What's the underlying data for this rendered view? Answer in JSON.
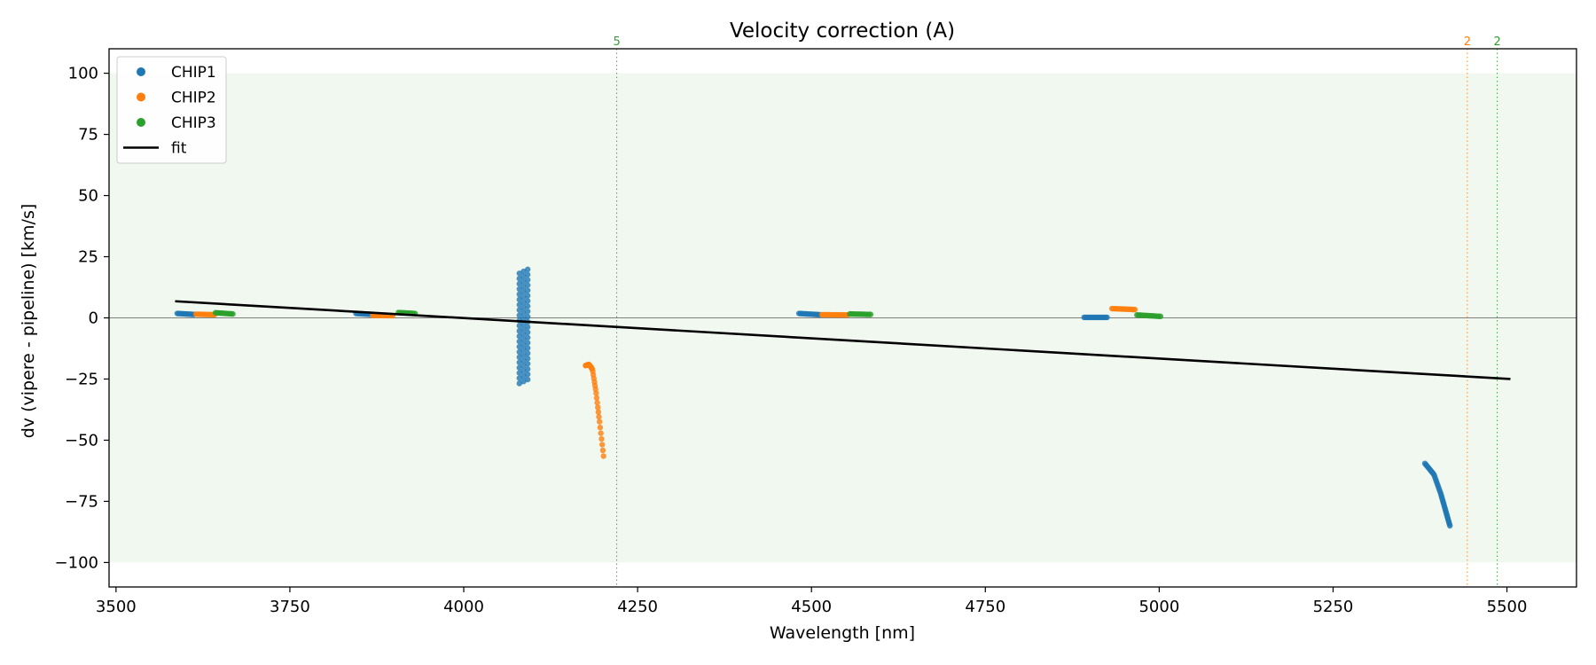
{
  "chart_data": {
    "type": "scatter",
    "title": "Velocity correction (A)",
    "xlabel": "Wavelength [nm]",
    "ylabel": "dv (vipere - pipeline) [km/s]",
    "xlim": [
      3490,
      5600
    ],
    "ylim": [
      -110,
      110
    ],
    "xticks": [
      3500,
      3750,
      4000,
      4250,
      4500,
      4750,
      5000,
      5250,
      5500
    ],
    "yticks": [
      -100,
      -75,
      -50,
      -25,
      0,
      25,
      50,
      75,
      100
    ],
    "xtick_labels": [
      "3500",
      "3750",
      "4000",
      "4250",
      "4500",
      "4750",
      "5000",
      "5250",
      "5500"
    ],
    "ytick_labels": [
      "−100",
      "−75",
      "−50",
      "−25",
      "0",
      "25",
      "50",
      "75",
      "100"
    ],
    "shaded_band": {
      "y0": -100,
      "y1": 100,
      "color": "#2ca02c"
    },
    "zero_line": {
      "y": 0
    },
    "legend": {
      "position": "top-left",
      "entries": [
        {
          "label": "CHIP1",
          "kind": "marker",
          "color": "#1f77b4"
        },
        {
          "label": "CHIP2",
          "kind": "marker",
          "color": "#ff7f0e"
        },
        {
          "label": "CHIP3",
          "kind": "marker",
          "color": "#2ca02c"
        },
        {
          "label": "fit",
          "kind": "line",
          "color": "#000000"
        }
      ]
    },
    "fit": {
      "name": "fit",
      "color": "#000000",
      "x": [
        3585,
        5505
      ],
      "y": [
        6.8,
        -25
      ]
    },
    "outlier_markers": [
      {
        "x": 4220,
        "label": "5",
        "color": "#2ca02c"
      },
      {
        "x": 5443,
        "label": "2",
        "color": "#ff7f0e"
      },
      {
        "x": 5486,
        "label": "2",
        "color": "#2ca02c"
      }
    ],
    "groups": [
      {
        "series": "CHIP1",
        "color": "#1f77b4",
        "kind": "segment",
        "x0": 3588,
        "x1": 3612,
        "y0": 1.8,
        "y1": 1.4,
        "n": 14
      },
      {
        "series": "CHIP2",
        "color": "#ff7f0e",
        "kind": "segment",
        "x0": 3615,
        "x1": 3642,
        "y0": 1.5,
        "y1": 1.3,
        "n": 14
      },
      {
        "series": "CHIP3",
        "color": "#2ca02c",
        "kind": "segment",
        "x0": 3643,
        "x1": 3668,
        "y0": 2.1,
        "y1": 1.6,
        "n": 14
      },
      {
        "series": "CHIP1",
        "color": "#1f77b4",
        "kind": "segment",
        "x0": 3845,
        "x1": 3868,
        "y0": 1.8,
        "y1": 1.4,
        "n": 12
      },
      {
        "series": "CHIP2",
        "color": "#ff7f0e",
        "kind": "segment",
        "x0": 3869,
        "x1": 3898,
        "y0": 1.0,
        "y1": 0.9,
        "n": 14
      },
      {
        "series": "CHIP3",
        "color": "#2ca02c",
        "kind": "segment",
        "x0": 3906,
        "x1": 3930,
        "y0": 2.2,
        "y1": 1.8,
        "n": 12
      },
      {
        "series": "CHIP1",
        "color": "#1f77b4",
        "kind": "vcluster",
        "xs": [
          4080,
          4086,
          4092
        ],
        "y0": -26,
        "y1": 19,
        "n": 22
      },
      {
        "series": "CHIP2",
        "color": "#ff7f0e",
        "kind": "curve",
        "pts": [
          [
            4175,
            -19.5
          ],
          [
            4180,
            -19
          ],
          [
            4185,
            -21
          ],
          [
            4190,
            -30
          ],
          [
            4195,
            -42
          ],
          [
            4201,
            -56.5
          ]
        ],
        "n": 32
      },
      {
        "series": "CHIP1",
        "color": "#1f77b4",
        "kind": "segment",
        "x0": 4482,
        "x1": 4512,
        "y0": 1.8,
        "y1": 1.3,
        "n": 16
      },
      {
        "series": "CHIP2",
        "color": "#ff7f0e",
        "kind": "segment",
        "x0": 4515,
        "x1": 4552,
        "y0": 1.3,
        "y1": 1.2,
        "n": 20
      },
      {
        "series": "CHIP3",
        "color": "#2ca02c",
        "kind": "segment",
        "x0": 4555,
        "x1": 4585,
        "y0": 1.6,
        "y1": 1.4,
        "n": 16
      },
      {
        "series": "CHIP1",
        "color": "#1f77b4",
        "kind": "segment",
        "x0": 4892,
        "x1": 4925,
        "y0": 0.2,
        "y1": 0.2,
        "n": 18
      },
      {
        "series": "CHIP2",
        "color": "#ff7f0e",
        "kind": "segment",
        "x0": 4932,
        "x1": 4965,
        "y0": 3.8,
        "y1": 3.4,
        "n": 18
      },
      {
        "series": "CHIP3",
        "color": "#2ca02c",
        "kind": "segment",
        "x0": 4968,
        "x1": 5002,
        "y0": 1.2,
        "y1": 0.6,
        "n": 18
      },
      {
        "series": "CHIP1",
        "color": "#1f77b4",
        "kind": "curve",
        "pts": [
          [
            5382,
            -59.5
          ],
          [
            5395,
            -64
          ],
          [
            5405,
            -72
          ],
          [
            5412,
            -79
          ],
          [
            5418,
            -85
          ]
        ],
        "n": 40
      }
    ]
  }
}
